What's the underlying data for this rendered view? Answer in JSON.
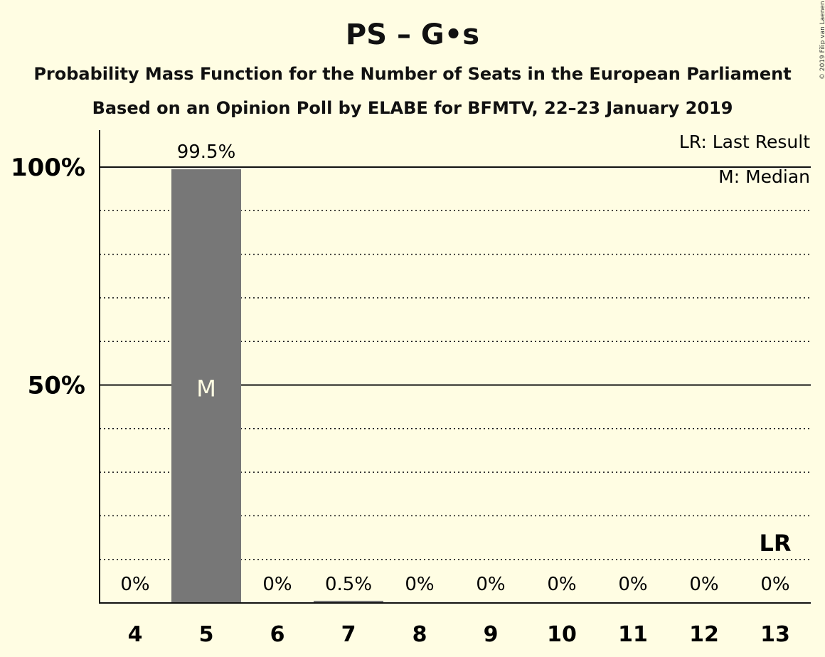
{
  "chart_data": {
    "type": "bar",
    "title": "PS – G•s",
    "subtitle_lines": [
      "Probability Mass Function for the Number of Seats in the European Parliament",
      "Based on an Opinion Poll by ELABE for BFMTV, 22–23 January 2019"
    ],
    "categories": [
      "4",
      "5",
      "6",
      "7",
      "8",
      "9",
      "10",
      "11",
      "12",
      "13"
    ],
    "values": [
      0,
      99.5,
      0,
      0.5,
      0,
      0,
      0,
      0,
      0,
      0
    ],
    "value_labels": [
      "0%",
      "99.5%",
      "0%",
      "0.5%",
      "0%",
      "0%",
      "0%",
      "0%",
      "0%",
      "0%"
    ],
    "ylim": [
      0,
      100
    ],
    "yticks": [
      {
        "value": 50,
        "label": "50%"
      },
      {
        "value": 100,
        "label": "100%"
      }
    ],
    "dotted_gridlines": [
      10,
      20,
      30,
      40,
      60,
      70,
      80,
      90
    ],
    "median_category": "5",
    "median_marker": "M",
    "last_result_category": "13",
    "last_result_marker": "LR",
    "legend": [
      "LR: Last Result",
      "M: Median"
    ],
    "bar_color": "#777777",
    "background_color": "#FFFDE3"
  },
  "copyright": "© 2019 Filip van Laenen"
}
